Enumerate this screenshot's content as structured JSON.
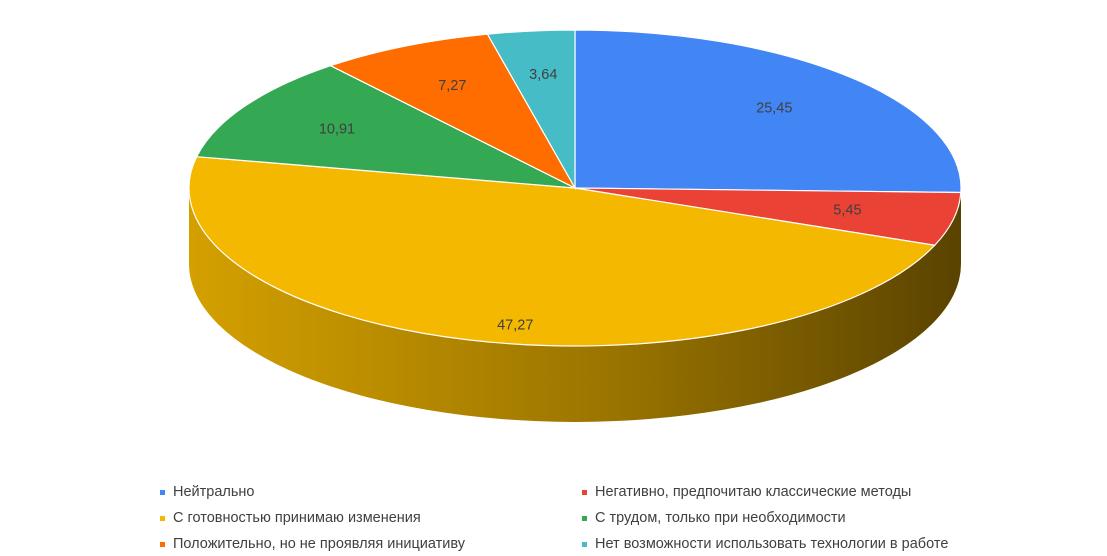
{
  "chart_data": {
    "type": "pie",
    "style": "3d",
    "title": "",
    "slices": [
      {
        "label": "Нейтрально",
        "value": 25.45,
        "value_label": "25,45",
        "color": "#4285F4"
      },
      {
        "label": "Негативно, предпочитаю классические методы",
        "value": 5.45,
        "value_label": "5,45",
        "color": "#EA4335"
      },
      {
        "label": "С готовностью принимаю изменения",
        "value": 47.27,
        "value_label": "47,27",
        "color": "#F5B800"
      },
      {
        "label": "С трудом, только при необходимости",
        "value": 10.91,
        "value_label": "10,91",
        "color": "#34A853"
      },
      {
        "label": "Положительно, но не проявляя инициативу",
        "value": 7.27,
        "value_label": "7,27",
        "color": "#FF6D01"
      },
      {
        "label": "Нет возможности использовать технологии в работе",
        "value": 3.64,
        "value_label": "3,64",
        "color": "#46BDC6"
      }
    ],
    "legend_position": "bottom"
  }
}
